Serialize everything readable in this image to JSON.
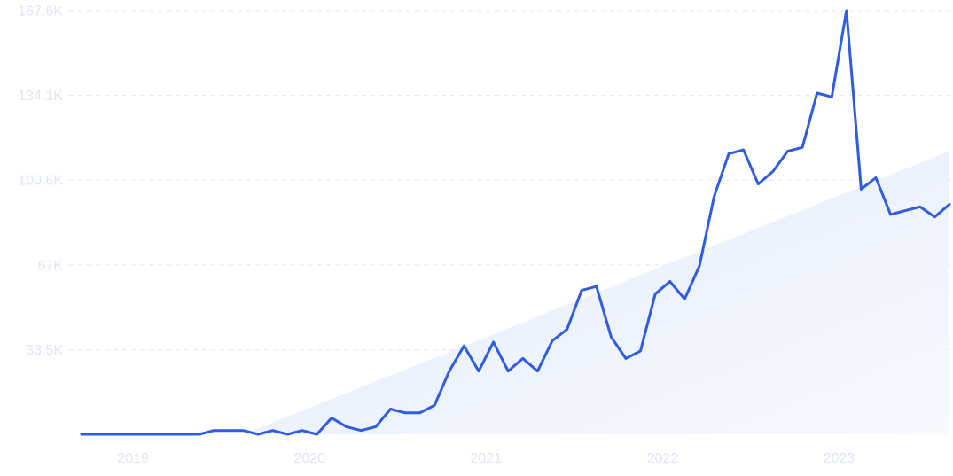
{
  "chart_data": {
    "type": "line",
    "title": "",
    "xlabel": "",
    "ylabel": "",
    "x_tick_labels": [
      "2019",
      "2020",
      "2021",
      "2022",
      "2023"
    ],
    "y_tick_labels": [
      "33.5K",
      "67K",
      "100.6K",
      "134.1K",
      "167.6K"
    ],
    "y_tick_values": [
      33500,
      67000,
      100600,
      134100,
      167600
    ],
    "ylim": [
      0,
      167600
    ],
    "xlim": [
      "2018-10",
      "2023-09"
    ],
    "grid": true,
    "line_color": "#2f5ce0",
    "trend_fill_color": "#e4edfb",
    "trend_line": {
      "x": [
        "2019-09",
        "2023-09"
      ],
      "y": [
        0,
        112000
      ]
    },
    "series": [
      {
        "x": [
          "2018-10",
          "2018-11",
          "2018-12",
          "2019-01",
          "2019-02",
          "2019-03",
          "2019-04",
          "2019-05",
          "2019-06",
          "2019-07",
          "2019-08",
          "2019-09",
          "2019-10",
          "2019-11",
          "2019-12",
          "2020-01",
          "2020-02",
          "2020-03",
          "2020-04",
          "2020-05",
          "2020-06",
          "2020-07",
          "2020-08",
          "2020-09",
          "2020-10",
          "2020-11",
          "2020-12",
          "2021-01",
          "2021-02",
          "2021-03",
          "2021-04",
          "2021-05",
          "2021-06",
          "2021-07",
          "2021-08",
          "2021-09",
          "2021-10",
          "2021-11",
          "2021-12",
          "2022-01",
          "2022-02",
          "2022-03",
          "2022-04",
          "2022-05",
          "2022-06",
          "2022-07",
          "2022-08",
          "2022-09",
          "2022-10",
          "2022-11",
          "2022-12",
          "2023-01",
          "2023-02",
          "2023-03",
          "2023-04",
          "2023-05",
          "2023-06",
          "2023-07",
          "2023-08",
          "2023-09"
        ],
        "values": [
          0,
          0,
          0,
          0,
          0,
          0,
          0,
          0,
          0,
          1500,
          1500,
          1500,
          0,
          1500,
          0,
          1500,
          0,
          6500,
          3000,
          1500,
          3000,
          10000,
          8500,
          8500,
          11500,
          25000,
          35000,
          25000,
          36500,
          25000,
          30000,
          25000,
          37000,
          41500,
          57000,
          58500,
          38500,
          30000,
          33000,
          55500,
          60500,
          53500,
          66500,
          94000,
          111000,
          112500,
          99000,
          104000,
          112000,
          113500,
          135000,
          133500,
          167600,
          97000,
          101500,
          87000,
          88500,
          90000,
          86000,
          91000
        ]
      }
    ]
  }
}
